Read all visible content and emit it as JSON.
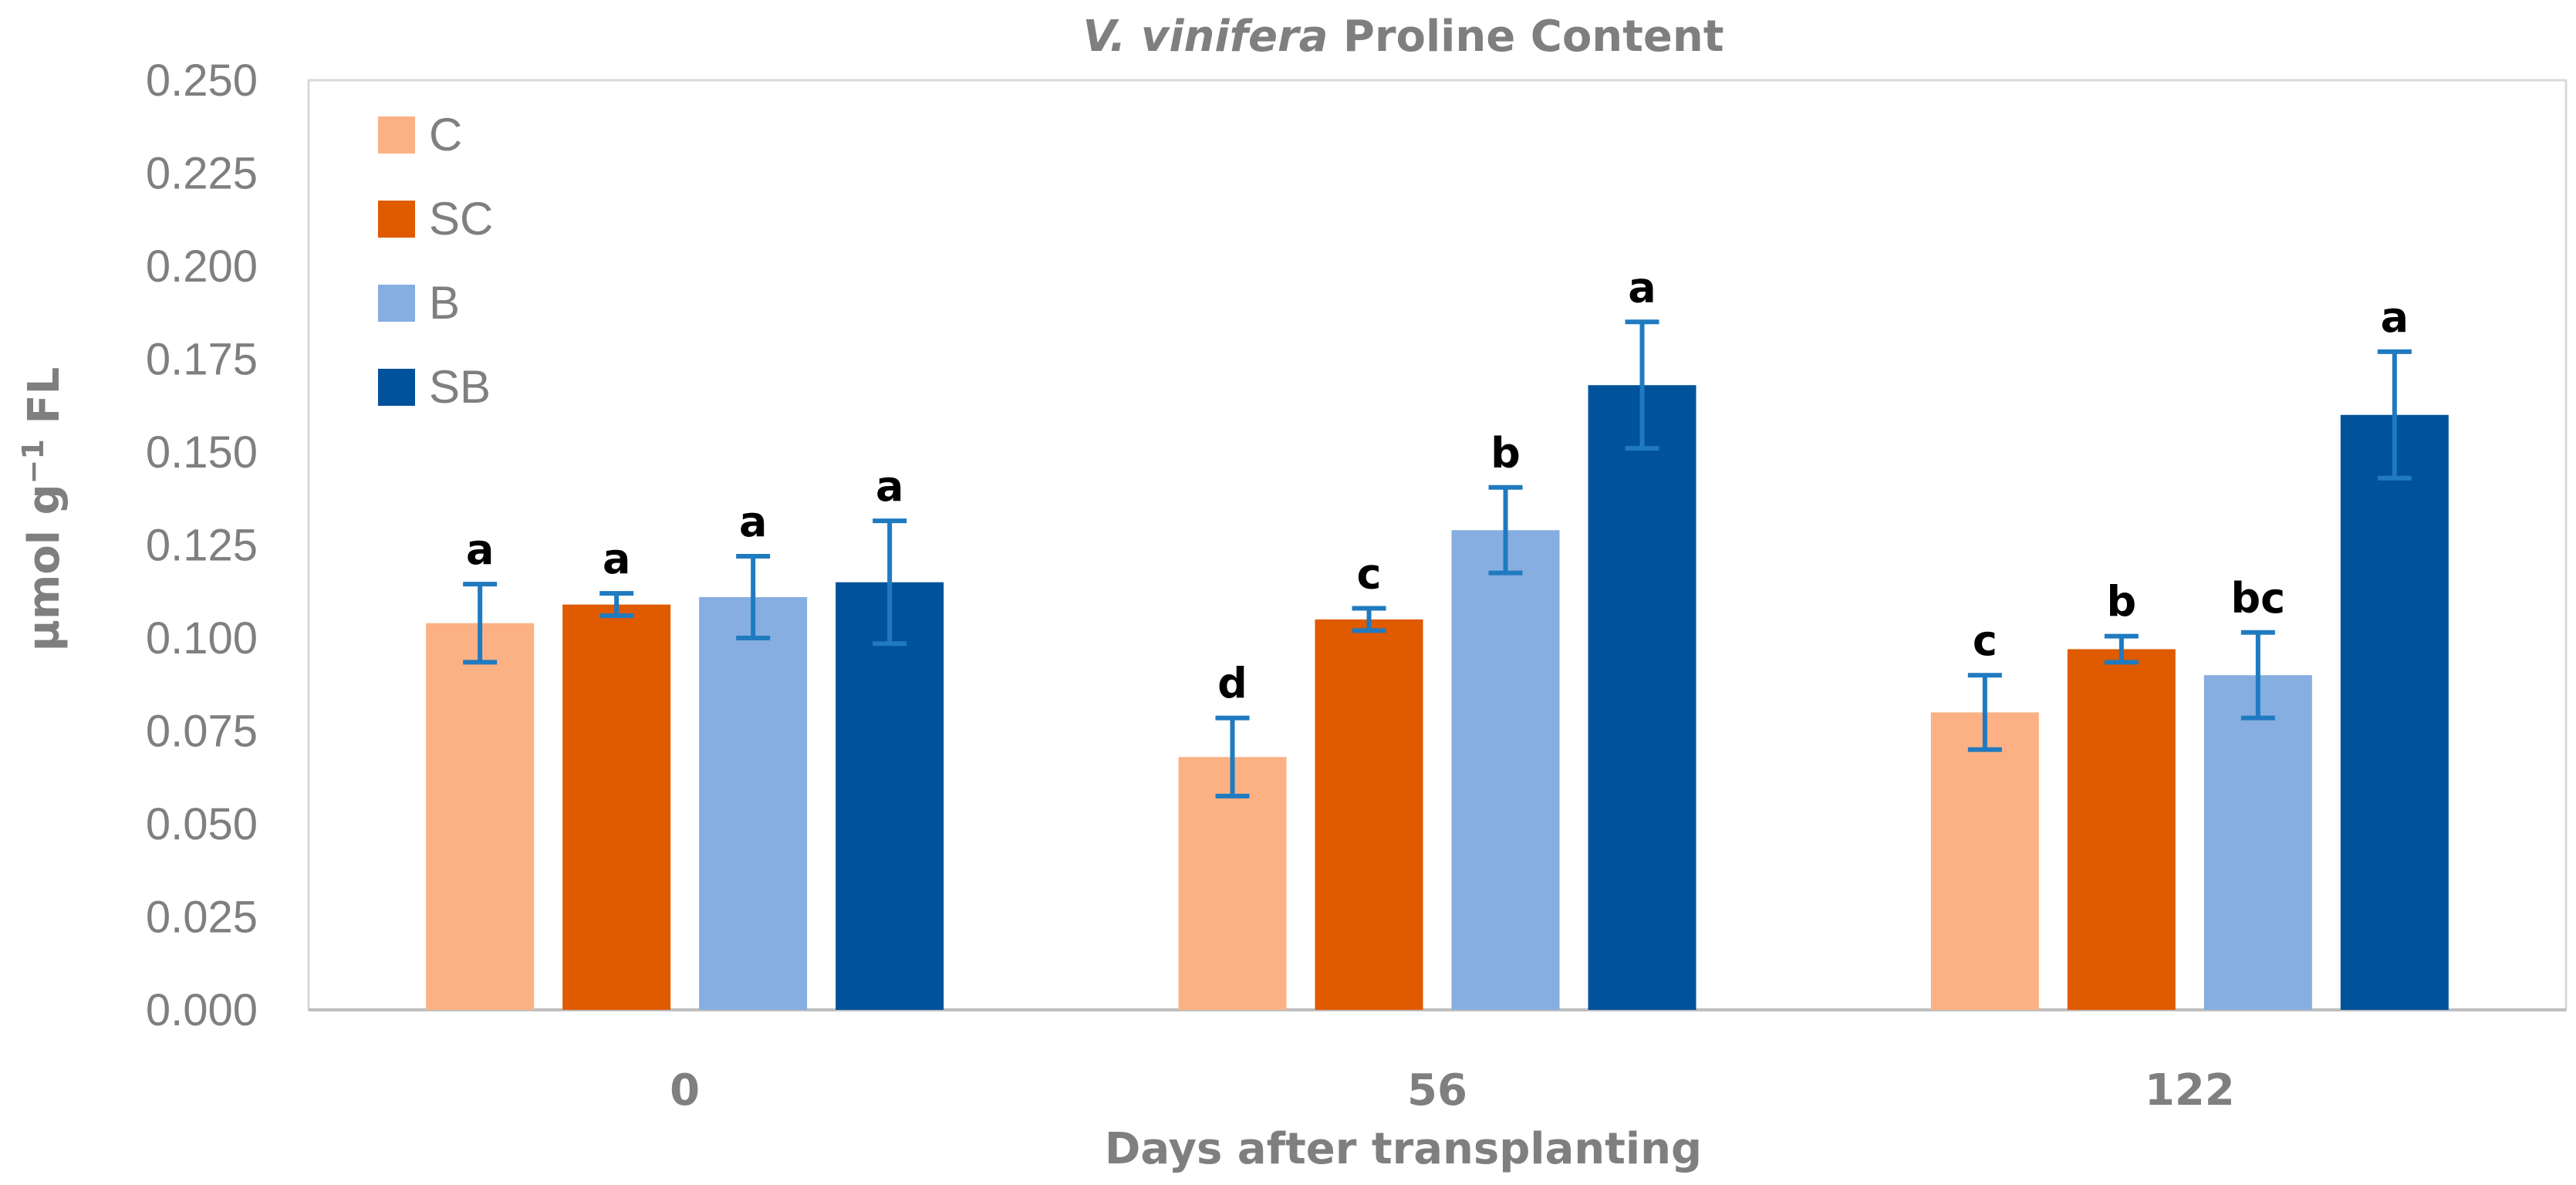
{
  "chart_data": {
    "type": "bar",
    "title_italic": "V. vinifera",
    "title_rest": " Proline Content",
    "xlabel": "Days after transplanting",
    "ylabel": "µmol g",
    "ylabel_sup": "−1",
    "ylabel_suffix": " FL",
    "ylim": [
      0,
      0.25
    ],
    "yticks": [
      0.0,
      0.025,
      0.05,
      0.075,
      0.1,
      0.125,
      0.15,
      0.175,
      0.2,
      0.225,
      0.25
    ],
    "ytick_labels": [
      "0.000",
      "0.025",
      "0.050",
      "0.075",
      "0.100",
      "0.125",
      "0.150",
      "0.175",
      "0.200",
      "0.225",
      "0.250"
    ],
    "categories": [
      "0",
      "56",
      "122"
    ],
    "legend_position": "top-left",
    "grid": false,
    "series": [
      {
        "name": "C",
        "color": "#fbb184",
        "values": [
          0.104,
          0.068,
          0.08
        ],
        "errors": [
          0.0105,
          0.0105,
          0.01
        ],
        "letters": [
          "a",
          "d",
          "c"
        ]
      },
      {
        "name": "SC",
        "color": "#e05a00",
        "values": [
          0.109,
          0.105,
          0.097
        ],
        "errors": [
          0.003,
          0.003,
          0.0035
        ],
        "letters": [
          "a",
          "c",
          "b"
        ]
      },
      {
        "name": "B",
        "color": "#86aee0",
        "values": [
          0.111,
          0.129,
          0.09
        ],
        "errors": [
          0.011,
          0.0115,
          0.0115
        ],
        "letters": [
          "a",
          "b",
          "bc"
        ]
      },
      {
        "name": "SB",
        "color": "#00529b",
        "values": [
          0.115,
          0.168,
          0.16
        ],
        "errors": [
          0.0165,
          0.017,
          0.017
        ],
        "letters": [
          "a",
          "a",
          "a"
        ]
      }
    ],
    "error_bar_color": "#1f7ac0"
  }
}
